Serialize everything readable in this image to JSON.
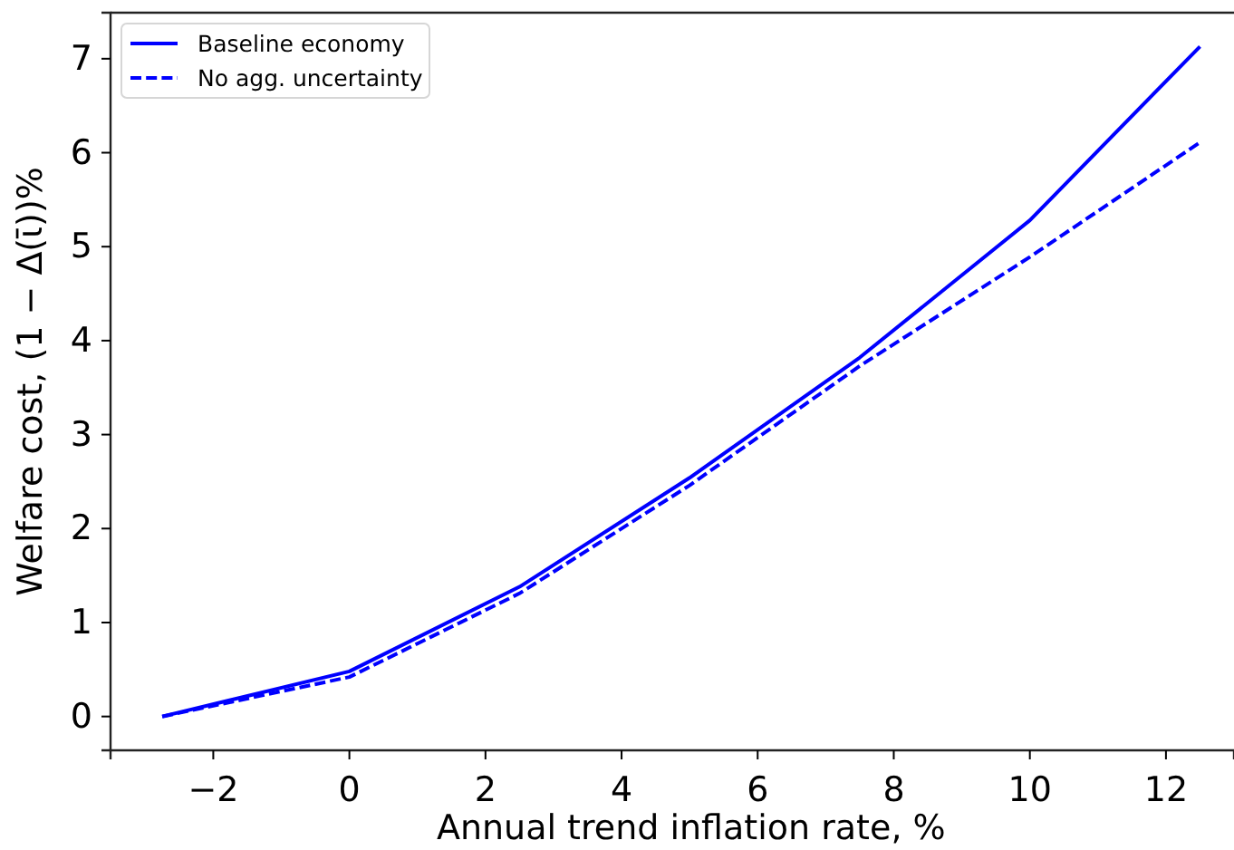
{
  "chart_data": {
    "type": "line",
    "xlabel": "Annual trend inflation rate, %",
    "ylabel": "Welfare cost, (1 − Δ(ῑ))%",
    "x": [
      -2.75,
      0,
      2.5,
      5,
      7.5,
      10,
      12.5
    ],
    "series": [
      {
        "name": "Baseline economy",
        "color": "#0000ff",
        "line_style": "solid",
        "values": [
          0,
          0.48,
          1.38,
          2.54,
          3.82,
          5.28,
          7.13
        ]
      },
      {
        "name": "No agg. uncertainty",
        "color": "#0000ff",
        "line_style": "dashed",
        "values": [
          0,
          0.42,
          1.31,
          2.46,
          3.73,
          4.89,
          6.11
        ]
      }
    ],
    "xlim": [
      -3.51,
      13.0
    ],
    "ylim": [
      -0.36,
      7.49
    ],
    "xticks": [
      -2,
      0,
      2,
      4,
      6,
      8,
      10,
      12
    ],
    "yticks": [
      0,
      1,
      2,
      3,
      4,
      5,
      6,
      7
    ],
    "legend": "top left"
  }
}
